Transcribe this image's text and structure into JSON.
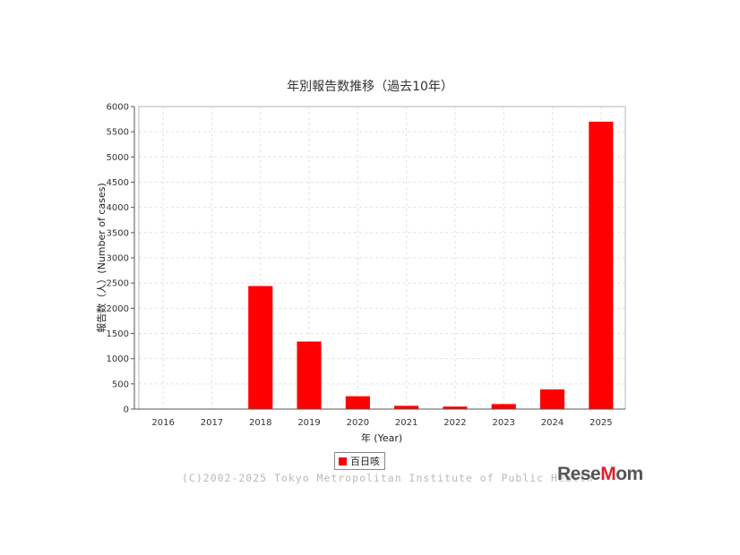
{
  "chart_data": {
    "type": "bar",
    "title": "年別報告数推移（過去10年）",
    "xlabel": "年 (Year)",
    "ylabel": "報告数（人）(Number of cases)",
    "categories": [
      "2016",
      "2017",
      "2018",
      "2019",
      "2020",
      "2021",
      "2022",
      "2023",
      "2024",
      "2025"
    ],
    "series": [
      {
        "name": "百日咳",
        "color": "#ff0000",
        "values": [
          0,
          0,
          2440,
          1340,
          255,
          65,
          50,
          100,
          390,
          5700
        ]
      }
    ],
    "ylim": [
      0,
      6000
    ],
    "yticks": [
      "0",
      "500",
      "1000",
      "1500",
      "2000",
      "2500",
      "3000",
      "3500",
      "4000",
      "4500",
      "5000",
      "5500",
      "6000"
    ],
    "grid": true,
    "legend_position": "bottom-center"
  },
  "footer": {
    "copyright": "(C)2002-2025 Tokyo Metropolitan Institute of Public Health",
    "logo_part1": "Rese",
    "logo_part2": "M",
    "logo_part3": "om"
  }
}
